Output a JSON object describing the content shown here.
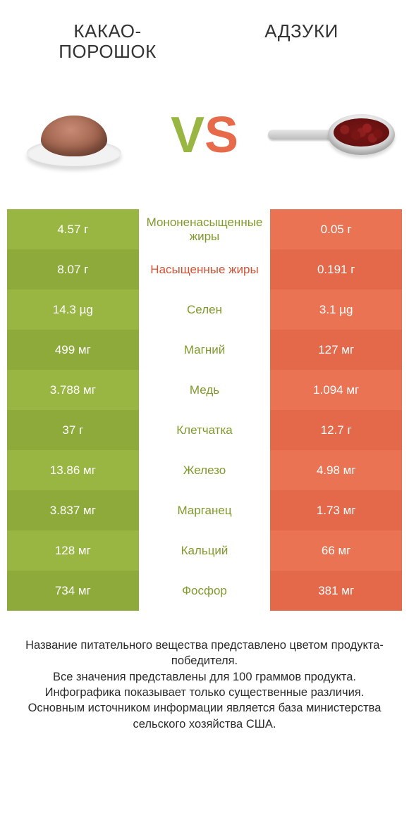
{
  "colors": {
    "green_a": "#99b643",
    "green_b": "#8daa3a",
    "orange_a": "#ea7354",
    "orange_b": "#e4684a",
    "mid_green": "#7f9a2c",
    "mid_orange": "#cf5336",
    "text_white": "#ffffff",
    "page_bg": "#ffffff"
  },
  "header": {
    "left_title": "КАКАО-ПОРОШОК",
    "right_title": "АДЗУКИ"
  },
  "vs": {
    "v": "V",
    "s": "S"
  },
  "rows": [
    {
      "left": "4.57 г",
      "label": "Мононенасыщенные жиры",
      "right": "0.05 г",
      "winner": "left"
    },
    {
      "left": "8.07 г",
      "label": "Насыщенные жиры",
      "right": "0.191 г",
      "winner": "right"
    },
    {
      "left": "14.3 µg",
      "label": "Селен",
      "right": "3.1 µg",
      "winner": "left"
    },
    {
      "left": "499 мг",
      "label": "Магний",
      "right": "127 мг",
      "winner": "left"
    },
    {
      "left": "3.788 мг",
      "label": "Медь",
      "right": "1.094 мг",
      "winner": "left"
    },
    {
      "left": "37 г",
      "label": "Клетчатка",
      "right": "12.7 г",
      "winner": "left"
    },
    {
      "left": "13.86 мг",
      "label": "Железо",
      "right": "4.98 мг",
      "winner": "left"
    },
    {
      "left": "3.837 мг",
      "label": "Марганец",
      "right": "1.73 мг",
      "winner": "left"
    },
    {
      "left": "128 мг",
      "label": "Кальций",
      "right": "66 мг",
      "winner": "left"
    },
    {
      "left": "734 мг",
      "label": "Фосфор",
      "right": "381 мг",
      "winner": "left"
    }
  ],
  "footer": {
    "line1": "Название питательного вещества представлено цветом продукта-победителя.",
    "line2": "Все значения представлены для 100 граммов продукта.",
    "line3": "Инфографика показывает только существенные различия.",
    "line4": "Основным источником информации является база министерства сельского хозяйства США."
  }
}
